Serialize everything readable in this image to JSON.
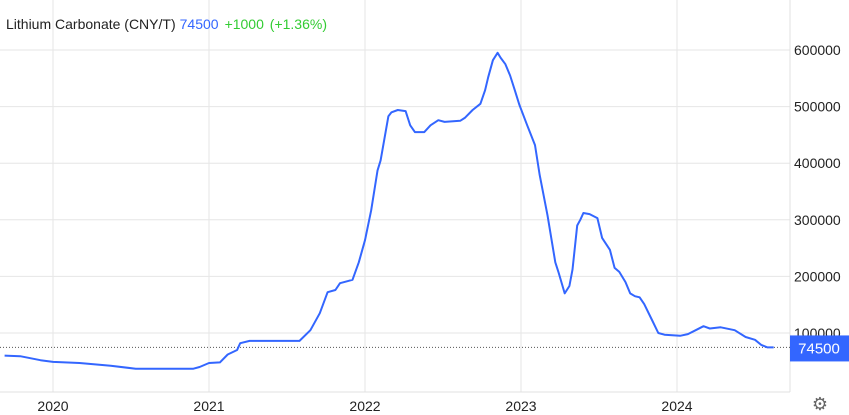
{
  "header": {
    "title": "Lithium Carbonate (CNY/T)",
    "last": "74500",
    "change": "+1000",
    "change_pct": "(+1.36%)"
  },
  "colors": {
    "line": "#3366ff",
    "change": "#33cc33",
    "grid": "#e6e6e6",
    "last_label_bg": "#3366ff"
  },
  "icons": {
    "settings": "gear-icon"
  },
  "chart_data": {
    "type": "line",
    "title": "Lithium Carbonate (CNY/T)",
    "xlabel": "",
    "ylabel": "",
    "x_ticks": [
      "2020",
      "2021",
      "2022",
      "2023",
      "2024"
    ],
    "y_ticks": [
      "100000",
      "200000",
      "300000",
      "400000",
      "500000",
      "600000"
    ],
    "xlim": [
      2019.66,
      2024.72
    ],
    "ylim": [
      0,
      690000
    ],
    "grid": true,
    "y_axis_side": "right",
    "last_value_label": "74500",
    "last_value": 74500,
    "series": [
      {
        "x": [
          2019.69,
          2019.79,
          2019.92,
          2020.0,
          2020.17,
          2020.37,
          2020.53,
          2020.9,
          2020.94,
          2021.0,
          2021.07,
          2021.12,
          2021.18,
          2021.2,
          2021.26,
          2021.58,
          2021.65,
          2021.71,
          2021.76,
          2021.81,
          2021.84,
          2021.92,
          2021.96,
          2022.0,
          2022.04,
          2022.08,
          2022.1,
          2022.15,
          2022.17,
          2022.21,
          2022.26,
          2022.29,
          2022.32,
          2022.38,
          2022.42,
          2022.47,
          2022.51,
          2022.61,
          2022.64,
          2022.69,
          2022.74,
          2022.77,
          2022.79,
          2022.82,
          2022.85,
          2022.87,
          2022.9,
          2022.93,
          2022.96,
          2022.99,
          2023.04,
          2023.09,
          2023.12,
          2023.17,
          2023.22,
          2023.24,
          2023.28,
          2023.31,
          2023.33,
          2023.36,
          2023.38,
          2023.4,
          2023.44,
          2023.49,
          2023.52,
          2023.57,
          2023.6,
          2023.63,
          2023.67,
          2023.7,
          2023.73,
          2023.76,
          2023.79,
          2023.84,
          2023.88,
          2023.92,
          2024.02,
          2024.07,
          2024.12,
          2024.17,
          2024.21,
          2024.28,
          2024.37,
          2024.44,
          2024.5,
          2024.54,
          2024.58,
          2024.62
        ],
        "values": [
          60000,
          59000,
          52000,
          49000,
          47000,
          42000,
          37000,
          37000,
          40000,
          47000,
          48000,
          62000,
          70000,
          82000,
          86000,
          86000,
          105000,
          135000,
          172000,
          176000,
          188000,
          194000,
          225000,
          264000,
          317000,
          387000,
          405000,
          483000,
          490000,
          494000,
          492000,
          467000,
          455000,
          455000,
          467000,
          476000,
          473000,
          475000,
          480000,
          494000,
          505000,
          529000,
          552000,
          582000,
          595000,
          586000,
          575000,
          555000,
          529000,
          503000,
          467000,
          432000,
          379000,
          308000,
          225000,
          208000,
          170000,
          183000,
          212000,
          290000,
          300000,
          312000,
          310000,
          303000,
          268000,
          247000,
          215000,
          208000,
          190000,
          170000,
          165000,
          163000,
          151000,
          123000,
          100000,
          97000,
          95000,
          98000,
          105000,
          112000,
          108000,
          110000,
          105000,
          93000,
          88000,
          79000,
          74500,
          74500
        ]
      }
    ]
  }
}
